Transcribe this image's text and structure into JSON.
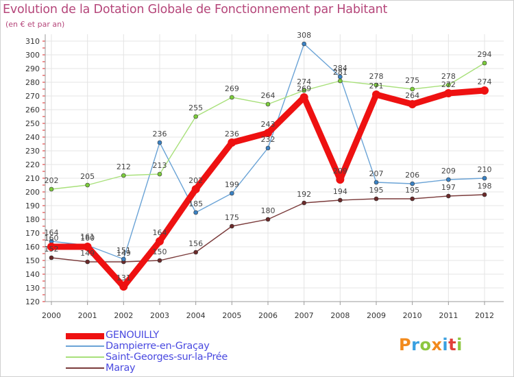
{
  "title": "Evolution de la Dotation Globale de Fonctionnement par Habitant",
  "subtitle": "(en € et par an)",
  "logo": {
    "text": "Proxiti",
    "letters": [
      {
        "ch": "P",
        "color": "#f28a1c"
      },
      {
        "ch": "r",
        "color": "#3aa0e0"
      },
      {
        "ch": "o",
        "color": "#8dc63f"
      },
      {
        "ch": "x",
        "color": "#f28a1c"
      },
      {
        "ch": "i",
        "color": "#3aa0e0"
      },
      {
        "ch": "t",
        "color": "#e0403a"
      },
      {
        "ch": "i",
        "color": "#8dc63f"
      }
    ]
  },
  "chart_data": {
    "type": "line",
    "title": "Evolution de la Dotation Globale de Fonctionnement par Habitant",
    "subtitle": "(en € et par an)",
    "xlabel": "",
    "ylabel": "",
    "categories": [
      "2000",
      "2001",
      "2002",
      "2003",
      "2004",
      "2005",
      "2006",
      "2007",
      "2008",
      "2009",
      "2010",
      "2011",
      "2012"
    ],
    "ylim": [
      120,
      310
    ],
    "yticks": [
      120,
      130,
      140,
      150,
      160,
      170,
      180,
      190,
      200,
      210,
      220,
      230,
      240,
      250,
      260,
      270,
      280,
      290,
      300,
      310
    ],
    "grid": true,
    "legend_position": "bottom-left",
    "series": [
      {
        "name": "GENOUILLY",
        "color": "#ee1111",
        "marker": "#ee1111",
        "bold": true,
        "values": [
          160,
          160,
          131,
          164,
          202,
          236,
          243,
          269,
          209,
          271,
          264,
          272,
          274
        ]
      },
      {
        "name": "Dampierre-en-Graçay",
        "color": "#6aa3d6",
        "marker": "#3b82c4",
        "bold": false,
        "values": [
          164,
          161,
          151,
          236,
          185,
          199,
          232,
          308,
          284,
          207,
          206,
          209,
          210
        ]
      },
      {
        "name": "Saint-Georges-sur-la-Prée",
        "color": "#a8e07a",
        "marker": "#7ccc3c",
        "bold": false,
        "values": [
          202,
          205,
          212,
          213,
          255,
          269,
          264,
          274,
          281,
          278,
          275,
          278,
          294
        ]
      },
      {
        "name": "Maray",
        "color": "#7a3a3a",
        "marker": "#6b2a2a",
        "bold": false,
        "values": [
          152,
          149,
          149,
          150,
          156,
          175,
          180,
          192,
          194,
          195,
          195,
          197,
          198
        ]
      }
    ]
  }
}
